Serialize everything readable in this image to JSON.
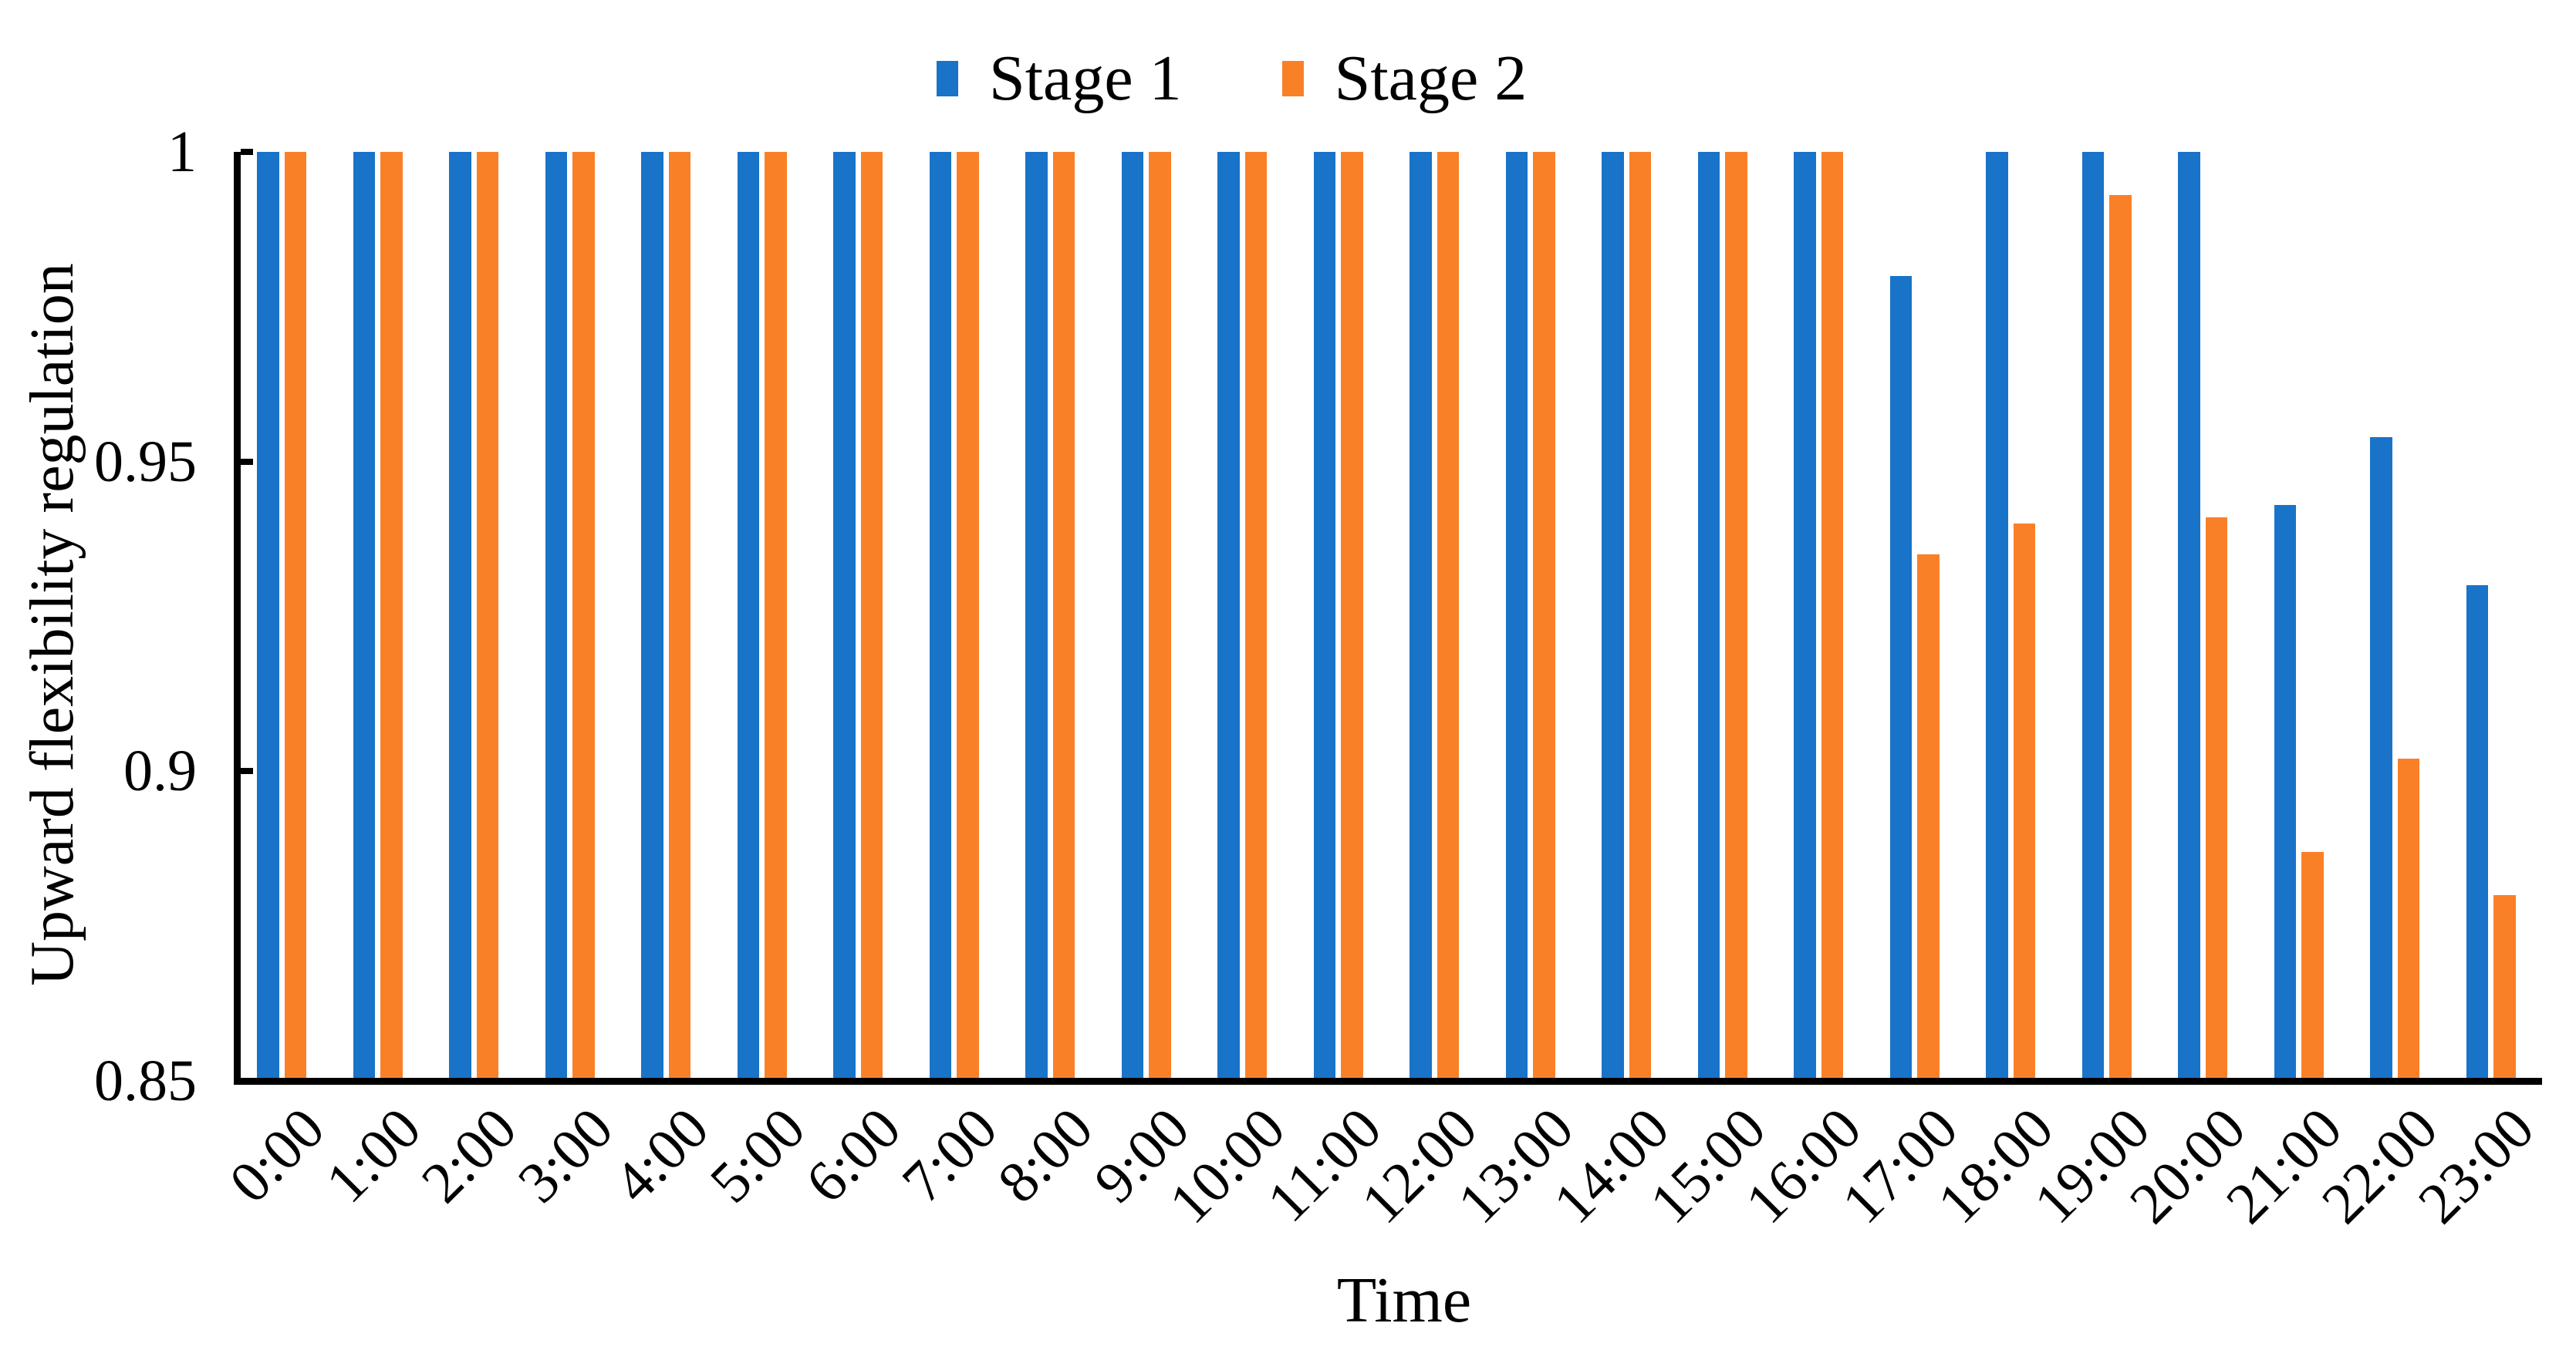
{
  "chart_data": {
    "type": "bar",
    "title": "",
    "xlabel": "Time",
    "ylabel": "Upward flexibility regulation",
    "ylim": [
      0.85,
      1.0
    ],
    "yticks": {
      "values": [
        1.0,
        0.95,
        0.9,
        0.85
      ],
      "labels": [
        "1",
        "0.95",
        "0.9",
        "0.85"
      ]
    },
    "grid": false,
    "legend_position": "top-center",
    "categories": [
      "0:00",
      "1:00",
      "2:00",
      "3:00",
      "4:00",
      "5:00",
      "6:00",
      "7:00",
      "8:00",
      "9:00",
      "10:00",
      "11:00",
      "12:00",
      "13:00",
      "14:00",
      "15:00",
      "16:00",
      "17:00",
      "18:00",
      "19:00",
      "20:00",
      "21:00",
      "22:00",
      "23:00"
    ],
    "series": [
      {
        "name": "Stage 1",
        "color": "#1973c8",
        "values": [
          1,
          1,
          1,
          1,
          1,
          1,
          1,
          1,
          1,
          1,
          1,
          1,
          1,
          1,
          1,
          1,
          1,
          0.98,
          1,
          1,
          1,
          0.943,
          0.954,
          0.93
        ]
      },
      {
        "name": "Stage 2",
        "color": "#fa8028",
        "values": [
          1,
          1,
          1,
          1,
          1,
          1,
          1,
          1,
          1,
          1,
          1,
          1,
          1,
          1,
          1,
          1,
          1,
          0.935,
          0.94,
          0.993,
          0.941,
          0.887,
          0.902,
          0.88
        ]
      }
    ],
    "axis_color": "#000000"
  }
}
